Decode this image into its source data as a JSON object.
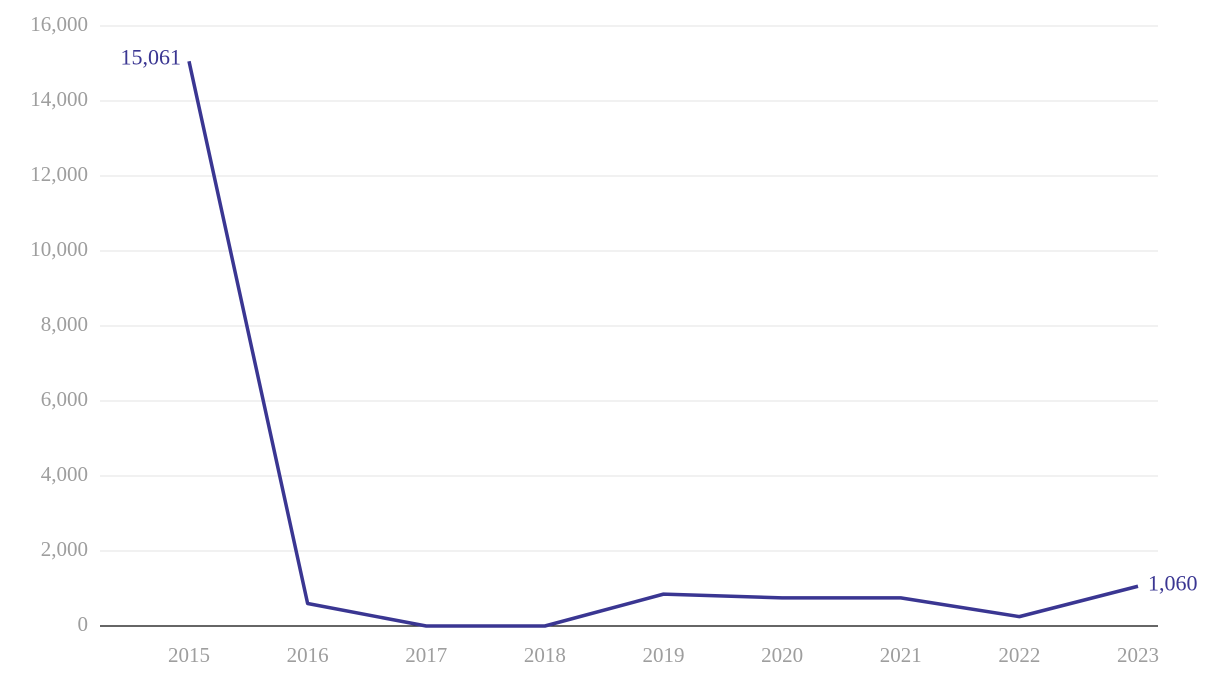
{
  "chart_data": {
    "type": "line",
    "categories": [
      "2015",
      "2016",
      "2017",
      "2018",
      "2019",
      "2020",
      "2021",
      "2022",
      "2023"
    ],
    "series": [
      {
        "color": "#3a3692",
        "values": [
          15061,
          600,
          0,
          0,
          850,
          750,
          750,
          250,
          1060
        ],
        "value_labels": [
          "15,061",
          null,
          null,
          null,
          null,
          null,
          null,
          null,
          "1,060"
        ]
      }
    ],
    "ylim": [
      0,
      16000
    ],
    "yticks": [
      0,
      {
        "value": 2000,
        "label": "2,000"
      },
      {
        "value": 4000,
        "label": "4,000"
      },
      {
        "value": 6000,
        "label": "6,000"
      },
      {
        "value": 8000,
        "label": "8,000"
      },
      {
        "value": 10000,
        "label": "10,000"
      },
      {
        "value": 12000,
        "label": "12,000"
      },
      {
        "value": 14000,
        "label": "14,000"
      },
      {
        "value": 16000,
        "label": "16,000"
      }
    ],
    "grid": true
  }
}
